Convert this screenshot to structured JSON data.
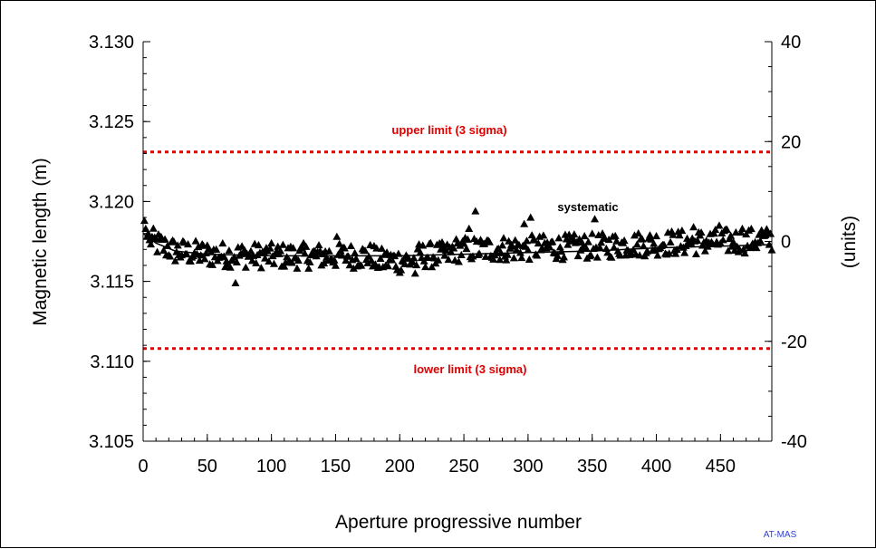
{
  "chart_data": {
    "type": "scatter",
    "title": "",
    "xlabel": "Aperture progressive number",
    "ylabel": "Magnetic length (m)",
    "y2label": "(units)",
    "xlim": [
      0,
      490
    ],
    "ylim": [
      3.105,
      3.13
    ],
    "y2lim": [
      -40,
      40
    ],
    "x_ticks": [
      "0",
      "50",
      "100",
      "150",
      "200",
      "250",
      "300",
      "350",
      "400",
      "450"
    ],
    "y_ticks": [
      "3.105",
      "3.110",
      "3.115",
      "3.120",
      "3.125",
      "3.130"
    ],
    "y2_ticks": [
      "-40",
      "-20",
      "0",
      "20",
      "40"
    ],
    "grid": false,
    "upper_limit": {
      "value": 3.1231,
      "label": "upper limit (3 sigma)",
      "color": "#e00000"
    },
    "lower_limit": {
      "value": 3.1108,
      "label": "lower limit (3 sigma)",
      "color": "#e00000"
    },
    "systematic_label": "systematic",
    "credit": "AT-MAS",
    "marker_color": "#000000",
    "measurements": {
      "x_start": 1,
      "x_end": 490,
      "outliers": [
        {
          "x": 1,
          "y": 3.1188
        },
        {
          "x": 2,
          "y": 3.1183
        },
        {
          "x": 3,
          "y": 3.1178
        },
        {
          "x": 5,
          "y": 3.1176
        },
        {
          "x": 72,
          "y": 3.1149
        },
        {
          "x": 151,
          "y": 3.1178
        },
        {
          "x": 212,
          "y": 3.1155
        },
        {
          "x": 259,
          "y": 3.1194
        },
        {
          "x": 302,
          "y": 3.119
        },
        {
          "x": 352,
          "y": 3.1189
        },
        {
          "x": 254,
          "y": 3.1183
        },
        {
          "x": 297,
          "y": 3.1186
        },
        {
          "x": 429,
          "y": 3.1184
        },
        {
          "x": 449,
          "y": 3.1185
        },
        {
          "x": 467,
          "y": 3.1183
        },
        {
          "x": 482,
          "y": 3.1182
        }
      ]
    },
    "systematic_curve": [
      {
        "x": 0,
        "y": 3.118
      },
      {
        "x": 10,
        "y": 3.1174
      },
      {
        "x": 25,
        "y": 3.1169
      },
      {
        "x": 50,
        "y": 3.1167
      },
      {
        "x": 100,
        "y": 3.1166
      },
      {
        "x": 150,
        "y": 3.1166
      },
      {
        "x": 200,
        "y": 3.1166
      },
      {
        "x": 250,
        "y": 3.1167
      },
      {
        "x": 300,
        "y": 3.1168
      },
      {
        "x": 350,
        "y": 3.1169
      },
      {
        "x": 400,
        "y": 3.1171
      },
      {
        "x": 450,
        "y": 3.1172
      },
      {
        "x": 490,
        "y": 3.1173
      }
    ]
  }
}
